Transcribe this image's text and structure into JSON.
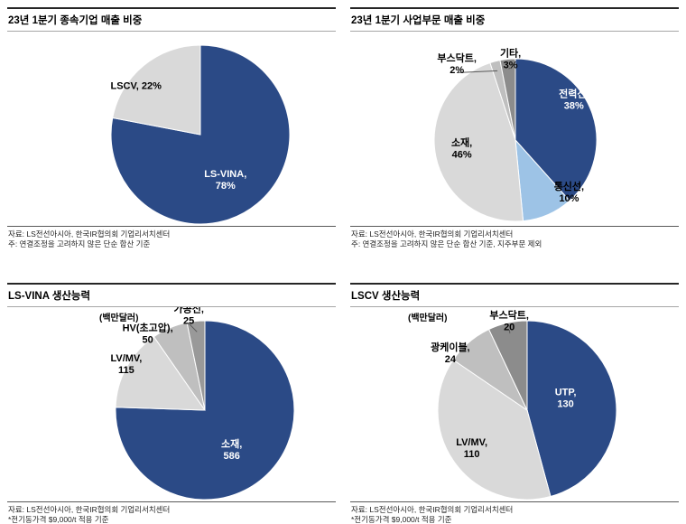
{
  "chart_data": [
    {
      "type": "pie",
      "title": "23년 1분기 종속기업 매출 비중",
      "source": "자료: LS전선아시아, 한국IR협의회 기업리서치센터",
      "note": "주: 연결조정을 고려하지 않은 단순 합산 기준",
      "slices": [
        {
          "label": "LS-VINA",
          "value": 78,
          "value_text": "78%",
          "display_lines": [
            "LS-VINA,",
            "78%"
          ],
          "color": "#2b4a86",
          "text_color": "#ffffff",
          "lx": 0.28,
          "ly": 0.5,
          "leader": false
        },
        {
          "label": "LSCV",
          "value": 22,
          "value_text": "22%",
          "display_lines": [
            "LSCV, 22%"
          ],
          "color": "#d9d9d9",
          "text_color": "#000000",
          "lx": -0.72,
          "ly": -0.55,
          "leader": false
        }
      ]
    },
    {
      "type": "pie",
      "title": "23년 1분기 사업부문 매출 비중",
      "source": "자료: LS전선아시아, 한국IR협의회 기업리서치센터",
      "note": "주: 연결조정을 고려하지 않은 단순 합산 기준, 지주부문 제외",
      "slices": [
        {
          "label": "전력선",
          "value": 38,
          "value_text": "38%",
          "display_lines": [
            "전력선,",
            "38%"
          ],
          "color": "#2b4a86",
          "text_color": "#ffffff",
          "lx": 0.72,
          "ly": -0.5,
          "leader": false
        },
        {
          "label": "통신선",
          "value": 10,
          "value_text": "10%",
          "display_lines": [
            "통신선,",
            "10%"
          ],
          "color": "#9dc3e6",
          "text_color": "#000000",
          "lx": 0.66,
          "ly": 0.64,
          "leader": false
        },
        {
          "label": "소재",
          "value": 46,
          "value_text": "46%",
          "display_lines": [
            "소재,",
            "46%"
          ],
          "color": "#d9d9d9",
          "text_color": "#000000",
          "lx": -0.66,
          "ly": 0.1,
          "leader": false
        },
        {
          "label": "부스닥트",
          "value": 2,
          "value_text": "2%",
          "display_lines": [
            "부스닥트,",
            "2%"
          ],
          "color": "#bfbfbf",
          "text_color": "#000000",
          "lx": -0.72,
          "ly": -0.94,
          "leader": true
        },
        {
          "label": "기타",
          "value": 3,
          "value_text": "3%",
          "display_lines": [
            "기타,",
            "3%"
          ],
          "color": "#8c8c8c",
          "text_color": "#000000",
          "lx": -0.06,
          "ly": -1.0,
          "leader": true
        }
      ]
    },
    {
      "type": "pie",
      "title": "LS-VINA 생산능력",
      "unit": "(백만달러)",
      "source": "자료: LS전선아시아, 한국IR협의회 기업리서치센터",
      "note": "*전기동가격 $9,000/t 적용 기준",
      "slices": [
        {
          "label": "소재",
          "value": 586,
          "value_text": "586",
          "display_lines": [
            "소재,",
            "586"
          ],
          "color": "#2b4a86",
          "text_color": "#ffffff",
          "lx": 0.3,
          "ly": 0.44,
          "leader": false
        },
        {
          "label": "LV/MV",
          "value": 115,
          "value_text": "115",
          "display_lines": [
            "LV/MV,",
            "115"
          ],
          "color": "#d9d9d9",
          "text_color": "#000000",
          "lx": -0.88,
          "ly": -0.52,
          "leader": false
        },
        {
          "label": "HV(초고압)",
          "value": 50,
          "value_text": "50",
          "display_lines": [
            "HV(초고압),",
            "50"
          ],
          "color": "#bfbfbf",
          "text_color": "#000000",
          "lx": -0.64,
          "ly": -0.86,
          "leader": false
        },
        {
          "label": "가공선",
          "value": 25,
          "value_text": "25",
          "display_lines": [
            "가공선,",
            "25"
          ],
          "color": "#999999",
          "text_color": "#000000",
          "lx": -0.18,
          "ly": -1.07,
          "leader": true
        }
      ]
    },
    {
      "type": "pie",
      "title": "LSCV 생산능력",
      "unit": "(백만달러)",
      "source": "자료: LS전선아시아, 한국IR협의회 기업리서치센터",
      "note": "*전기동가격 $9,000/t 적용 기준",
      "slices": [
        {
          "label": "UTP",
          "value": 130,
          "value_text": "130",
          "display_lines": [
            "UTP,",
            "130"
          ],
          "color": "#2b4a86",
          "text_color": "#ffffff",
          "lx": 0.43,
          "ly": -0.14,
          "leader": false
        },
        {
          "label": "LV/MV",
          "value": 110,
          "value_text": "110",
          "display_lines": [
            "LV/MV,",
            "110"
          ],
          "color": "#d9d9d9",
          "text_color": "#000000",
          "lx": -0.62,
          "ly": 0.42,
          "leader": false
        },
        {
          "label": "광케이블",
          "value": 24,
          "value_text": "24",
          "display_lines": [
            "광케이블,",
            "24"
          ],
          "color": "#bfbfbf",
          "text_color": "#000000",
          "lx": -0.86,
          "ly": -0.64,
          "leader": false
        },
        {
          "label": "부스닥트",
          "value": 20,
          "value_text": "20",
          "display_lines": [
            "부스닥트,",
            "20"
          ],
          "color": "#8c8c8c",
          "text_color": "#000000",
          "lx": -0.2,
          "ly": -1.0,
          "leader": true
        }
      ]
    }
  ]
}
